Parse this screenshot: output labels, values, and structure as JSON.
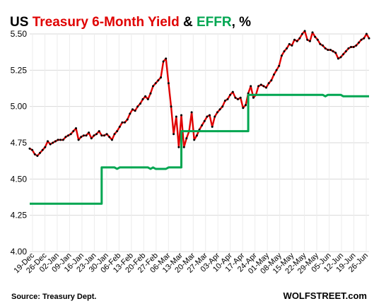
{
  "chart_data": {
    "type": "line",
    "title_parts": [
      {
        "text": "US ",
        "color": "#000000"
      },
      {
        "text": "Treasury 6-Month  Yield",
        "color": "#e00000"
      },
      {
        "text": " & ",
        "color": "#000000"
      },
      {
        "text": "EFFR",
        "color": "#00a651"
      },
      {
        "text": ", %",
        "color": "#000000"
      }
    ],
    "ylim": [
      4.0,
      5.5
    ],
    "y_ticks": [
      "4.00",
      "4.25",
      "4.50",
      "4.75",
      "5.00",
      "5.25",
      "5.50"
    ],
    "x_ticks": [
      "19-Dec",
      "26-Dec",
      "02-Jan",
      "09-Jan",
      "16-Jan",
      "23-Jan",
      "30-Jan",
      "06-Feb",
      "13-Feb",
      "20-Feb",
      "27-Feb",
      "06-Mar",
      "13-Mar",
      "20-Mar",
      "27-Mar",
      "03-Apr",
      "10-Apr",
      "17-Apr",
      "24-Apr",
      "01-May",
      "08-May",
      "15-May",
      "22-May",
      "29-May",
      "05-Jun",
      "12-Jun",
      "19-Jun",
      "26-Jun"
    ],
    "grid": true,
    "series": [
      {
        "color": "#e00000",
        "marker_color": "#000000",
        "points": [
          [
            0,
            4.71
          ],
          [
            1,
            4.7
          ],
          [
            2,
            4.67
          ],
          [
            3,
            4.66
          ],
          [
            4,
            4.68
          ],
          [
            5,
            4.7
          ],
          [
            6,
            4.72
          ],
          [
            7,
            4.76
          ],
          [
            8,
            4.74
          ],
          [
            9,
            4.75
          ],
          [
            10,
            4.76
          ],
          [
            11,
            4.77
          ],
          [
            12,
            4.77
          ],
          [
            13,
            4.77
          ],
          [
            14,
            4.79
          ],
          [
            15,
            4.8
          ],
          [
            16,
            4.81
          ],
          [
            17,
            4.83
          ],
          [
            18,
            4.85
          ],
          [
            19,
            4.77
          ],
          [
            20,
            4.79
          ],
          [
            21,
            4.8
          ],
          [
            22,
            4.8
          ],
          [
            23,
            4.82
          ],
          [
            24,
            4.78
          ],
          [
            25,
            4.8
          ],
          [
            26,
            4.81
          ],
          [
            27,
            4.83
          ],
          [
            28,
            4.8
          ],
          [
            29,
            4.8
          ],
          [
            30,
            4.81
          ],
          [
            31,
            4.79
          ],
          [
            32,
            4.77
          ],
          [
            33,
            4.81
          ],
          [
            34,
            4.83
          ],
          [
            35,
            4.86
          ],
          [
            36,
            4.89
          ],
          [
            37,
            4.89
          ],
          [
            38,
            4.91
          ],
          [
            39,
            4.95
          ],
          [
            40,
            4.98
          ],
          [
            41,
            4.97
          ],
          [
            42,
            5.0
          ],
          [
            43,
            5.02
          ],
          [
            44,
            5.05
          ],
          [
            45,
            5.07
          ],
          [
            46,
            5.05
          ],
          [
            47,
            5.09
          ],
          [
            48,
            5.14
          ],
          [
            49,
            5.16
          ],
          [
            50,
            5.18
          ],
          [
            51,
            5.2
          ],
          [
            52,
            5.31
          ],
          [
            53,
            5.33
          ],
          [
            54,
            5.16
          ],
          [
            55,
            5.0
          ],
          [
            56,
            4.81
          ],
          [
            57,
            4.93
          ],
          [
            58,
            4.72
          ],
          [
            59,
            4.94
          ],
          [
            60,
            4.72
          ],
          [
            61,
            4.78
          ],
          [
            62,
            4.83
          ],
          [
            63,
            4.96
          ],
          [
            64,
            4.77
          ],
          [
            65,
            4.8
          ],
          [
            66,
            4.84
          ],
          [
            67,
            4.87
          ],
          [
            68,
            4.9
          ],
          [
            69,
            4.93
          ],
          [
            70,
            4.94
          ],
          [
            71,
            4.86
          ],
          [
            72,
            4.93
          ],
          [
            73,
            4.96
          ],
          [
            74,
            4.98
          ],
          [
            75,
            5.0
          ],
          [
            76,
            5.04
          ],
          [
            77,
            5.05
          ],
          [
            78,
            5.08
          ],
          [
            79,
            5.1
          ],
          [
            80,
            5.06
          ],
          [
            81,
            5.05
          ],
          [
            82,
            5.06
          ],
          [
            83,
            4.99
          ],
          [
            84,
            5.01
          ],
          [
            85,
            5.09
          ],
          [
            86,
            5.14
          ],
          [
            87,
            5.06
          ],
          [
            88,
            5.08
          ],
          [
            89,
            5.14
          ],
          [
            90,
            5.15
          ],
          [
            91,
            5.14
          ],
          [
            92,
            5.13
          ],
          [
            93,
            5.16
          ],
          [
            94,
            5.18
          ],
          [
            95,
            5.22
          ],
          [
            96,
            5.25
          ],
          [
            97,
            5.28
          ],
          [
            98,
            5.35
          ],
          [
            99,
            5.38
          ],
          [
            100,
            5.4
          ],
          [
            101,
            5.43
          ],
          [
            102,
            5.42
          ],
          [
            103,
            5.46
          ],
          [
            104,
            5.45
          ],
          [
            105,
            5.47
          ],
          [
            106,
            5.5
          ],
          [
            107,
            5.52
          ],
          [
            108,
            5.46
          ],
          [
            109,
            5.45
          ],
          [
            110,
            5.51
          ],
          [
            111,
            5.48
          ],
          [
            112,
            5.46
          ],
          [
            113,
            5.43
          ],
          [
            114,
            5.42
          ],
          [
            115,
            5.4
          ],
          [
            116,
            5.39
          ],
          [
            117,
            5.39
          ],
          [
            118,
            5.38
          ],
          [
            119,
            5.37
          ],
          [
            120,
            5.33
          ],
          [
            121,
            5.34
          ],
          [
            122,
            5.36
          ],
          [
            123,
            5.38
          ],
          [
            124,
            5.4
          ],
          [
            125,
            5.41
          ],
          [
            126,
            5.41
          ],
          [
            127,
            5.42
          ],
          [
            128,
            5.44
          ],
          [
            129,
            5.46
          ],
          [
            130,
            5.47
          ],
          [
            131,
            5.5
          ],
          [
            132,
            5.47
          ]
        ]
      },
      {
        "color": "#00a651",
        "points": [
          [
            0,
            4.33
          ],
          [
            28,
            4.33
          ],
          [
            28,
            4.58
          ],
          [
            33,
            4.58
          ],
          [
            34,
            4.57
          ],
          [
            35,
            4.58
          ],
          [
            46,
            4.58
          ],
          [
            47,
            4.57
          ],
          [
            48,
            4.58
          ],
          [
            49,
            4.57
          ],
          [
            53,
            4.57
          ],
          [
            54,
            4.58
          ],
          [
            59,
            4.58
          ],
          [
            59,
            4.83
          ],
          [
            85,
            4.83
          ],
          [
            85,
            5.08
          ],
          [
            114,
            5.08
          ],
          [
            115,
            5.07
          ],
          [
            116,
            5.08
          ],
          [
            121,
            5.08
          ],
          [
            122,
            5.07
          ],
          [
            132,
            5.07
          ]
        ]
      }
    ]
  },
  "footer": {
    "source": "Source: Treasury Dept.",
    "brand": "WOLFSTREET.com"
  }
}
